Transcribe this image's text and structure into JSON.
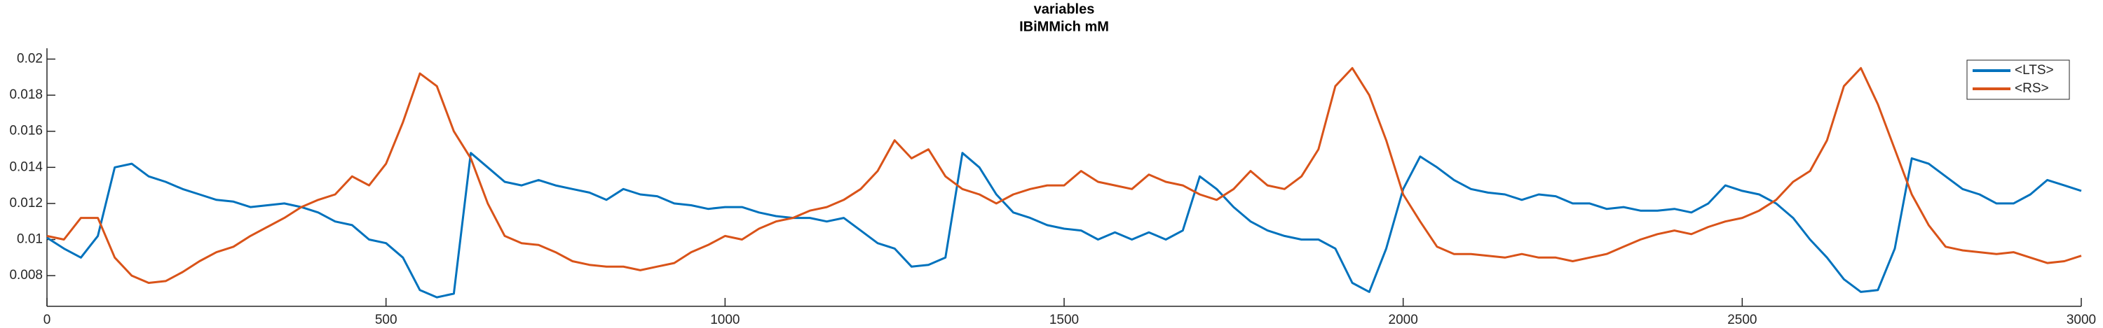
{
  "chart_data": {
    "type": "line",
    "title": "variables",
    "subtitle": "IBiMMich mM",
    "x": [
      0,
      25,
      50,
      75,
      100,
      125,
      150,
      175,
      200,
      225,
      250,
      275,
      300,
      325,
      350,
      375,
      400,
      425,
      450,
      475,
      500,
      525,
      550,
      575,
      600,
      625,
      650,
      675,
      700,
      725,
      750,
      775,
      800,
      825,
      850,
      875,
      900,
      925,
      950,
      975,
      1000,
      1025,
      1050,
      1075,
      1100,
      1125,
      1150,
      1175,
      1200,
      1225,
      1250,
      1275,
      1300,
      1325,
      1350,
      1375,
      1400,
      1425,
      1450,
      1475,
      1500,
      1525,
      1550,
      1575,
      1600,
      1625,
      1650,
      1675,
      1700,
      1725,
      1750,
      1775,
      1800,
      1825,
      1850,
      1875,
      1900,
      1925,
      1950,
      1975,
      2000,
      2025,
      2050,
      2075,
      2100,
      2125,
      2150,
      2175,
      2200,
      2225,
      2250,
      2275,
      2300,
      2325,
      2350,
      2375,
      2400,
      2425,
      2450,
      2475,
      2500,
      2525,
      2550,
      2575,
      2600,
      2625,
      2650,
      2675,
      2700,
      2725,
      2750,
      2775,
      2800,
      2825,
      2850,
      2875,
      2900,
      2925,
      2950,
      2975,
      3000
    ],
    "series": [
      {
        "name": "<LTS>",
        "color": "#0072bd",
        "values": [
          0.0101,
          0.0095,
          0.009,
          0.0102,
          0.014,
          0.0142,
          0.0135,
          0.0132,
          0.0128,
          0.0125,
          0.0122,
          0.0121,
          0.0118,
          0.0119,
          0.012,
          0.0118,
          0.0115,
          0.011,
          0.0108,
          0.01,
          0.0098,
          0.009,
          0.0072,
          0.0068,
          0.007,
          0.0148,
          0.014,
          0.0132,
          0.013,
          0.0133,
          0.013,
          0.0128,
          0.0126,
          0.0122,
          0.0128,
          0.0125,
          0.0124,
          0.012,
          0.0119,
          0.0117,
          0.0118,
          0.0118,
          0.0115,
          0.0113,
          0.0112,
          0.0112,
          0.011,
          0.0112,
          0.0105,
          0.0098,
          0.0095,
          0.0085,
          0.0086,
          0.009,
          0.0148,
          0.014,
          0.0125,
          0.0115,
          0.0112,
          0.0108,
          0.0106,
          0.0105,
          0.01,
          0.0104,
          0.01,
          0.0104,
          0.01,
          0.0105,
          0.0135,
          0.0128,
          0.0118,
          0.011,
          0.0105,
          0.0102,
          0.01,
          0.01,
          0.0095,
          0.0076,
          0.0071,
          0.0095,
          0.0128,
          0.0146,
          0.014,
          0.0133,
          0.0128,
          0.0126,
          0.0125,
          0.0122,
          0.0125,
          0.0124,
          0.012,
          0.012,
          0.0117,
          0.0118,
          0.0116,
          0.0116,
          0.0117,
          0.0115,
          0.012,
          0.013,
          0.0127,
          0.0125,
          0.012,
          0.0112,
          0.01,
          0.009,
          0.0078,
          0.0071,
          0.0072,
          0.0095,
          0.0145,
          0.0142,
          0.0135,
          0.0128,
          0.0125,
          0.012,
          0.012,
          0.0125,
          0.0133,
          0.013,
          0.0127
        ]
      },
      {
        "name": "<RS>",
        "color": "#d95319",
        "values": [
          0.0102,
          0.01,
          0.0112,
          0.0112,
          0.009,
          0.008,
          0.0076,
          0.0077,
          0.0082,
          0.0088,
          0.0093,
          0.0096,
          0.0102,
          0.0107,
          0.0112,
          0.0118,
          0.0122,
          0.0125,
          0.0135,
          0.013,
          0.0142,
          0.0165,
          0.0192,
          0.0185,
          0.016,
          0.0145,
          0.012,
          0.0102,
          0.0098,
          0.0097,
          0.0093,
          0.0088,
          0.0086,
          0.0085,
          0.0085,
          0.0083,
          0.0085,
          0.0087,
          0.0093,
          0.0097,
          0.0102,
          0.01,
          0.0106,
          0.011,
          0.0112,
          0.0116,
          0.0118,
          0.0122,
          0.0128,
          0.0138,
          0.0155,
          0.0145,
          0.015,
          0.0135,
          0.0128,
          0.0125,
          0.012,
          0.0125,
          0.0128,
          0.013,
          0.013,
          0.0138,
          0.0132,
          0.013,
          0.0128,
          0.0136,
          0.0132,
          0.013,
          0.0125,
          0.0122,
          0.0128,
          0.0138,
          0.013,
          0.0128,
          0.0135,
          0.015,
          0.0185,
          0.0195,
          0.018,
          0.0155,
          0.0125,
          0.011,
          0.0096,
          0.0092,
          0.0092,
          0.0091,
          0.009,
          0.0092,
          0.009,
          0.009,
          0.0088,
          0.009,
          0.0092,
          0.0096,
          0.01,
          0.0103,
          0.0105,
          0.0103,
          0.0107,
          0.011,
          0.0112,
          0.0116,
          0.0122,
          0.0132,
          0.0138,
          0.0155,
          0.0185,
          0.0195,
          0.0175,
          0.015,
          0.0125,
          0.0108,
          0.0096,
          0.0094,
          0.0093,
          0.0092,
          0.0093,
          0.009,
          0.0087,
          0.0088,
          0.0091
        ]
      }
    ],
    "xlim": [
      0,
      3000
    ],
    "xticks": [
      0,
      500,
      1000,
      1500,
      2000,
      2500,
      3000
    ],
    "ylim": [
      0.0063,
      0.0206
    ],
    "yticks": [
      0.008,
      0.01,
      0.012,
      0.014,
      0.016,
      0.018,
      0.02
    ],
    "grid": false,
    "legend": "top-right"
  }
}
